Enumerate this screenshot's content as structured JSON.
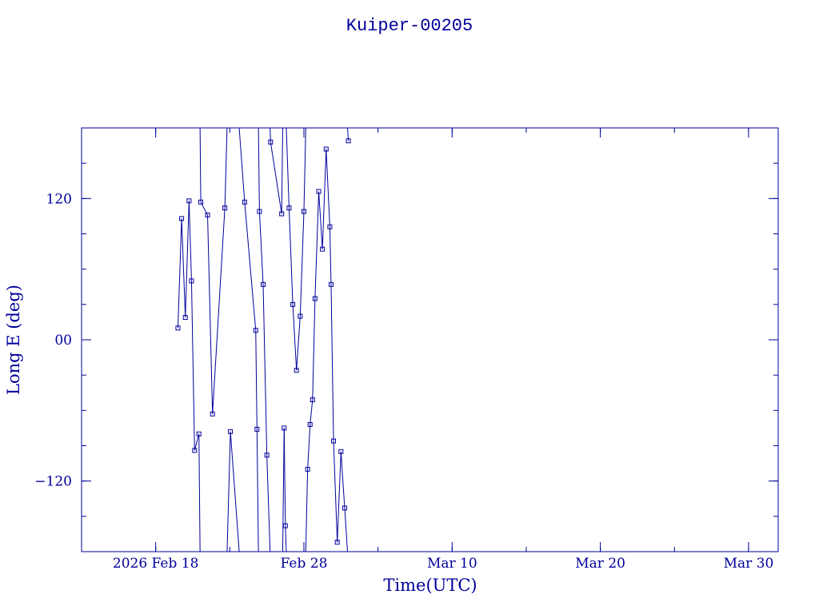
{
  "title": "Kuiper-00205",
  "colors": {
    "ink": "#00009a",
    "background": "#ffffff"
  },
  "chart_data": {
    "type": "line",
    "title": "Kuiper-00205",
    "xlabel": "Time(UTC)",
    "ylabel": "Long E (deg)",
    "xlim": [
      "2026-02-13",
      "2026-04-01"
    ],
    "ylim": [
      -180,
      180
    ],
    "grid": false,
    "markers": "open-square",
    "x_ticks": [
      {
        "label": "2026 Feb 18",
        "date": "2026-02-18"
      },
      {
        "label": "Feb 28",
        "date": "2026-02-28"
      },
      {
        "label": "Mar 10",
        "date": "2026-03-10"
      },
      {
        "label": "Mar 20",
        "date": "2026-03-20"
      },
      {
        "label": "Mar 30",
        "date": "2026-03-30"
      }
    ],
    "y_ticks": [
      {
        "label": "−120",
        "value": -120
      },
      {
        "label": "00",
        "value": 0
      },
      {
        "label": "120",
        "value": 120
      }
    ],
    "x_minor_step_days": 5,
    "y_minor_step": 30,
    "points": [
      {
        "t": "2026-02-19T12:00",
        "lon": 10
      },
      {
        "t": "2026-02-19T18:00",
        "lon": 103
      },
      {
        "t": "2026-02-20T00:00",
        "lon": 19
      },
      {
        "t": "2026-02-20T06:00",
        "lon": 118
      },
      {
        "t": "2026-02-20T10:00",
        "lon": 50
      },
      {
        "t": "2026-02-20T15:00",
        "lon": -94
      },
      {
        "t": "2026-02-20T22:00",
        "lon": -80
      },
      {
        "t": "2026-02-21T01:00",
        "lon": 117
      },
      {
        "t": "2026-02-21T12:00",
        "lon": 106
      },
      {
        "t": "2026-02-21T20:00",
        "lon": -63
      },
      {
        "t": "2026-02-22T16:00",
        "lon": 112
      },
      {
        "t": "2026-02-23T01:00",
        "lon": -78
      },
      {
        "t": "2026-02-24T00:00",
        "lon": 117
      },
      {
        "t": "2026-02-24T18:00",
        "lon": 8
      },
      {
        "t": "2026-02-24T20:00",
        "lon": -76
      },
      {
        "t": "2026-02-25T00:00",
        "lon": 109
      },
      {
        "t": "2026-02-25T06:00",
        "lon": 47
      },
      {
        "t": "2026-02-25T12:00",
        "lon": -98
      },
      {
        "t": "2026-02-25T18:00",
        "lon": 168
      },
      {
        "t": "2026-02-26T12:00",
        "lon": 107
      },
      {
        "t": "2026-02-26T16:00",
        "lon": -75
      },
      {
        "t": "2026-02-26T18:00",
        "lon": -158
      },
      {
        "t": "2026-02-27T00:00",
        "lon": 112
      },
      {
        "t": "2026-02-27T06:00",
        "lon": 30
      },
      {
        "t": "2026-02-27T12:00",
        "lon": -26
      },
      {
        "t": "2026-02-27T18:00",
        "lon": 20
      },
      {
        "t": "2026-02-28T00:00",
        "lon": 109
      },
      {
        "t": "2026-02-28T06:00",
        "lon": -110
      },
      {
        "t": "2026-02-28T10:00",
        "lon": -72
      },
      {
        "t": "2026-02-28T14:00",
        "lon": -51
      },
      {
        "t": "2026-02-28T18:00",
        "lon": 35
      },
      {
        "t": "2026-03-01T00:00",
        "lon": 126
      },
      {
        "t": "2026-03-01T06:00",
        "lon": 77
      },
      {
        "t": "2026-03-01T12:00",
        "lon": 162
      },
      {
        "t": "2026-03-01T18:00",
        "lon": 96
      },
      {
        "t": "2026-03-01T20:00",
        "lon": 47
      },
      {
        "t": "2026-03-02T00:00",
        "lon": -86
      },
      {
        "t": "2026-03-02T06:00",
        "lon": -172
      },
      {
        "t": "2026-03-02T12:00",
        "lon": -95
      },
      {
        "t": "2026-03-02T18:00",
        "lon": -143
      },
      {
        "t": "2026-03-03T00:00",
        "lon": 169
      }
    ]
  }
}
